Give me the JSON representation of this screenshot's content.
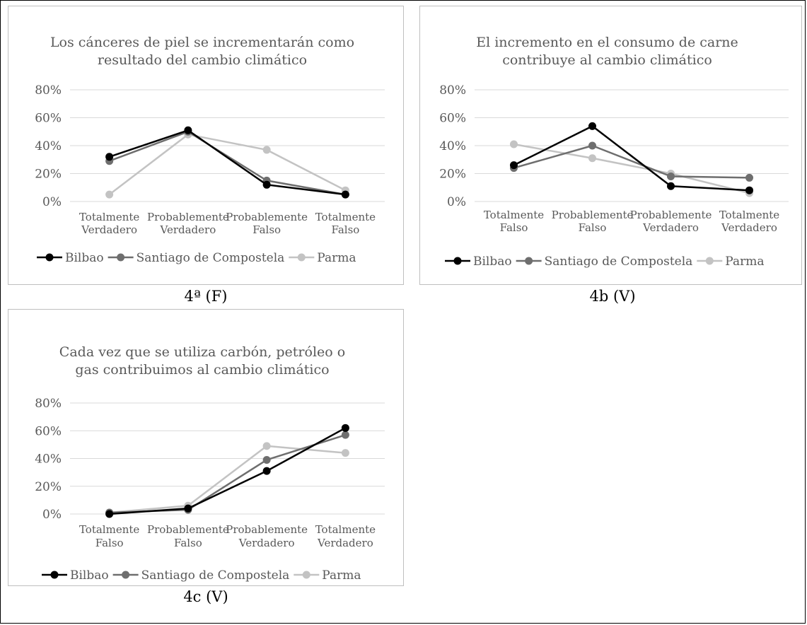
{
  "captions": [
    "4ª (F)",
    "4b (V)",
    "4c (V)"
  ],
  "colors": {
    "Bilbao": "#000000",
    "Santiago de Compostela": "#6e6e6e",
    "Parma": "#c3c3c3"
  },
  "chart_data": [
    {
      "type": "line",
      "title": [
        "Los cánceres de piel se incrementarán como",
        "resultado del cambio climático"
      ],
      "categories": [
        [
          "Totalmente",
          "Verdadero"
        ],
        [
          "Probablemente",
          "Verdadero"
        ],
        [
          "Probablemente",
          "Falso"
        ],
        [
          "Totalmente",
          "Falso"
        ]
      ],
      "series": [
        {
          "name": "Bilbao",
          "values": [
            32,
            51,
            12,
            5
          ]
        },
        {
          "name": "Santiago de Compostela",
          "values": [
            29,
            50,
            15,
            5
          ]
        },
        {
          "name": "Parma",
          "values": [
            5,
            48,
            37,
            8
          ]
        }
      ],
      "yticks": [
        "0%",
        "20%",
        "40%",
        "60%",
        "80%"
      ],
      "ylim": [
        0,
        80
      ],
      "grid": true,
      "legend": "bottom"
    },
    {
      "type": "line",
      "title": [
        "El incremento en el consumo de carne",
        "contribuye al cambio climático"
      ],
      "categories": [
        [
          "Totalmente",
          "Falso"
        ],
        [
          "Probablemente",
          "Falso"
        ],
        [
          "Probablemente",
          "Verdadero"
        ],
        [
          "Totalmente",
          "Verdadero"
        ]
      ],
      "series": [
        {
          "name": "Bilbao",
          "values": [
            26,
            54,
            11,
            8
          ]
        },
        {
          "name": "Santiago de Compostela",
          "values": [
            24,
            40,
            18,
            17
          ]
        },
        {
          "name": "Parma",
          "values": [
            41,
            31,
            20,
            6
          ]
        }
      ],
      "yticks": [
        "0%",
        "20%",
        "40%",
        "60%",
        "80%"
      ],
      "ylim": [
        0,
        80
      ],
      "grid": true,
      "legend": "bottom"
    },
    {
      "type": "line",
      "title": [
        "Cada vez que se utiliza carbón, petróleo o",
        "gas contribuimos al cambio climático"
      ],
      "categories": [
        [
          "Totalmente",
          "Falso"
        ],
        [
          "Probablemente",
          "Falso"
        ],
        [
          "Probablemente",
          "Verdadero"
        ],
        [
          "Totalmente",
          "Verdadero"
        ]
      ],
      "series": [
        {
          "name": "Bilbao",
          "values": [
            0,
            4,
            31,
            62
          ]
        },
        {
          "name": "Santiago de Compostela",
          "values": [
            1,
            3,
            39,
            57
          ]
        },
        {
          "name": "Parma",
          "values": [
            1,
            6,
            49,
            44
          ]
        }
      ],
      "yticks": [
        "0%",
        "20%",
        "40%",
        "60%",
        "80%"
      ],
      "ylim": [
        0,
        80
      ],
      "grid": true,
      "legend": "bottom"
    }
  ]
}
